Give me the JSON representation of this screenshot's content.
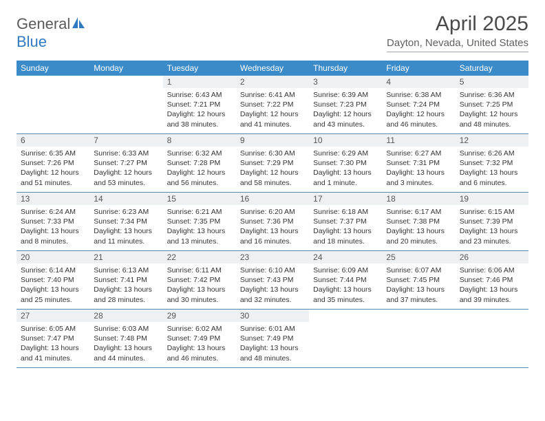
{
  "logo": {
    "text_general": "General",
    "text_blue": "Blue"
  },
  "title": "April 2025",
  "location": "Dayton, Nevada, United States",
  "colors": {
    "header_bg": "#3b8bc9",
    "header_text": "#ffffff",
    "daynum_bg": "#eef1f4",
    "text": "#333333",
    "divider": "#5b88a8"
  },
  "day_headers": [
    "Sunday",
    "Monday",
    "Tuesday",
    "Wednesday",
    "Thursday",
    "Friday",
    "Saturday"
  ],
  "weeks": [
    [
      {
        "empty": true
      },
      {
        "empty": true
      },
      {
        "num": "1",
        "sunrise": "Sunrise: 6:43 AM",
        "sunset": "Sunset: 7:21 PM",
        "daylight1": "Daylight: 12 hours",
        "daylight2": "and 38 minutes."
      },
      {
        "num": "2",
        "sunrise": "Sunrise: 6:41 AM",
        "sunset": "Sunset: 7:22 PM",
        "daylight1": "Daylight: 12 hours",
        "daylight2": "and 41 minutes."
      },
      {
        "num": "3",
        "sunrise": "Sunrise: 6:39 AM",
        "sunset": "Sunset: 7:23 PM",
        "daylight1": "Daylight: 12 hours",
        "daylight2": "and 43 minutes."
      },
      {
        "num": "4",
        "sunrise": "Sunrise: 6:38 AM",
        "sunset": "Sunset: 7:24 PM",
        "daylight1": "Daylight: 12 hours",
        "daylight2": "and 46 minutes."
      },
      {
        "num": "5",
        "sunrise": "Sunrise: 6:36 AM",
        "sunset": "Sunset: 7:25 PM",
        "daylight1": "Daylight: 12 hours",
        "daylight2": "and 48 minutes."
      }
    ],
    [
      {
        "num": "6",
        "sunrise": "Sunrise: 6:35 AM",
        "sunset": "Sunset: 7:26 PM",
        "daylight1": "Daylight: 12 hours",
        "daylight2": "and 51 minutes."
      },
      {
        "num": "7",
        "sunrise": "Sunrise: 6:33 AM",
        "sunset": "Sunset: 7:27 PM",
        "daylight1": "Daylight: 12 hours",
        "daylight2": "and 53 minutes."
      },
      {
        "num": "8",
        "sunrise": "Sunrise: 6:32 AM",
        "sunset": "Sunset: 7:28 PM",
        "daylight1": "Daylight: 12 hours",
        "daylight2": "and 56 minutes."
      },
      {
        "num": "9",
        "sunrise": "Sunrise: 6:30 AM",
        "sunset": "Sunset: 7:29 PM",
        "daylight1": "Daylight: 12 hours",
        "daylight2": "and 58 minutes."
      },
      {
        "num": "10",
        "sunrise": "Sunrise: 6:29 AM",
        "sunset": "Sunset: 7:30 PM",
        "daylight1": "Daylight: 13 hours",
        "daylight2": "and 1 minute."
      },
      {
        "num": "11",
        "sunrise": "Sunrise: 6:27 AM",
        "sunset": "Sunset: 7:31 PM",
        "daylight1": "Daylight: 13 hours",
        "daylight2": "and 3 minutes."
      },
      {
        "num": "12",
        "sunrise": "Sunrise: 6:26 AM",
        "sunset": "Sunset: 7:32 PM",
        "daylight1": "Daylight: 13 hours",
        "daylight2": "and 6 minutes."
      }
    ],
    [
      {
        "num": "13",
        "sunrise": "Sunrise: 6:24 AM",
        "sunset": "Sunset: 7:33 PM",
        "daylight1": "Daylight: 13 hours",
        "daylight2": "and 8 minutes."
      },
      {
        "num": "14",
        "sunrise": "Sunrise: 6:23 AM",
        "sunset": "Sunset: 7:34 PM",
        "daylight1": "Daylight: 13 hours",
        "daylight2": "and 11 minutes."
      },
      {
        "num": "15",
        "sunrise": "Sunrise: 6:21 AM",
        "sunset": "Sunset: 7:35 PM",
        "daylight1": "Daylight: 13 hours",
        "daylight2": "and 13 minutes."
      },
      {
        "num": "16",
        "sunrise": "Sunrise: 6:20 AM",
        "sunset": "Sunset: 7:36 PM",
        "daylight1": "Daylight: 13 hours",
        "daylight2": "and 16 minutes."
      },
      {
        "num": "17",
        "sunrise": "Sunrise: 6:18 AM",
        "sunset": "Sunset: 7:37 PM",
        "daylight1": "Daylight: 13 hours",
        "daylight2": "and 18 minutes."
      },
      {
        "num": "18",
        "sunrise": "Sunrise: 6:17 AM",
        "sunset": "Sunset: 7:38 PM",
        "daylight1": "Daylight: 13 hours",
        "daylight2": "and 20 minutes."
      },
      {
        "num": "19",
        "sunrise": "Sunrise: 6:15 AM",
        "sunset": "Sunset: 7:39 PM",
        "daylight1": "Daylight: 13 hours",
        "daylight2": "and 23 minutes."
      }
    ],
    [
      {
        "num": "20",
        "sunrise": "Sunrise: 6:14 AM",
        "sunset": "Sunset: 7:40 PM",
        "daylight1": "Daylight: 13 hours",
        "daylight2": "and 25 minutes."
      },
      {
        "num": "21",
        "sunrise": "Sunrise: 6:13 AM",
        "sunset": "Sunset: 7:41 PM",
        "daylight1": "Daylight: 13 hours",
        "daylight2": "and 28 minutes."
      },
      {
        "num": "22",
        "sunrise": "Sunrise: 6:11 AM",
        "sunset": "Sunset: 7:42 PM",
        "daylight1": "Daylight: 13 hours",
        "daylight2": "and 30 minutes."
      },
      {
        "num": "23",
        "sunrise": "Sunrise: 6:10 AM",
        "sunset": "Sunset: 7:43 PM",
        "daylight1": "Daylight: 13 hours",
        "daylight2": "and 32 minutes."
      },
      {
        "num": "24",
        "sunrise": "Sunrise: 6:09 AM",
        "sunset": "Sunset: 7:44 PM",
        "daylight1": "Daylight: 13 hours",
        "daylight2": "and 35 minutes."
      },
      {
        "num": "25",
        "sunrise": "Sunrise: 6:07 AM",
        "sunset": "Sunset: 7:45 PM",
        "daylight1": "Daylight: 13 hours",
        "daylight2": "and 37 minutes."
      },
      {
        "num": "26",
        "sunrise": "Sunrise: 6:06 AM",
        "sunset": "Sunset: 7:46 PM",
        "daylight1": "Daylight: 13 hours",
        "daylight2": "and 39 minutes."
      }
    ],
    [
      {
        "num": "27",
        "sunrise": "Sunrise: 6:05 AM",
        "sunset": "Sunset: 7:47 PM",
        "daylight1": "Daylight: 13 hours",
        "daylight2": "and 41 minutes."
      },
      {
        "num": "28",
        "sunrise": "Sunrise: 6:03 AM",
        "sunset": "Sunset: 7:48 PM",
        "daylight1": "Daylight: 13 hours",
        "daylight2": "and 44 minutes."
      },
      {
        "num": "29",
        "sunrise": "Sunrise: 6:02 AM",
        "sunset": "Sunset: 7:49 PM",
        "daylight1": "Daylight: 13 hours",
        "daylight2": "and 46 minutes."
      },
      {
        "num": "30",
        "sunrise": "Sunrise: 6:01 AM",
        "sunset": "Sunset: 7:49 PM",
        "daylight1": "Daylight: 13 hours",
        "daylight2": "and 48 minutes."
      },
      {
        "empty": true
      },
      {
        "empty": true
      },
      {
        "empty": true
      }
    ]
  ]
}
